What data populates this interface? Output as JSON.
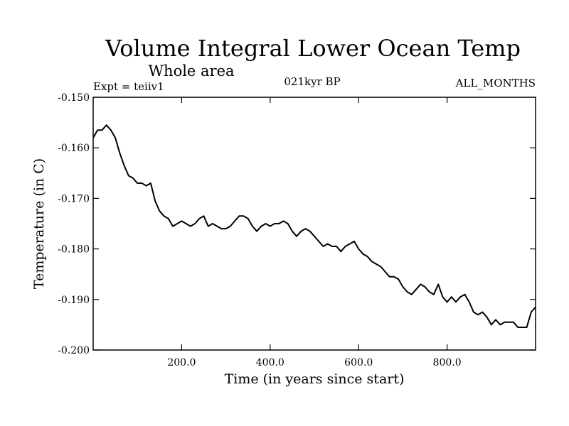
{
  "chart_data": {
    "type": "line",
    "title": "Volume Integral Lower Ocean Temp",
    "subtitle": "Whole area",
    "annotations": {
      "left": "Expt = teiiv1",
      "center": "021kyr BP",
      "right": "ALL_MONTHS"
    },
    "xlabel": "Time (in years since start)",
    "ylabel": "Temperature (in C)",
    "xlim": [
      0,
      1000
    ],
    "ylim": [
      -0.2,
      -0.15
    ],
    "x_ticks": [
      200,
      400,
      600,
      800
    ],
    "x_tick_labels": [
      "200.0",
      "400.0",
      "600.0",
      "800.0"
    ],
    "y_ticks": [
      -0.2,
      -0.19,
      -0.18,
      -0.17,
      -0.16,
      -0.15
    ],
    "y_tick_labels": [
      "-0.200",
      "-0.190",
      "-0.180",
      "-0.170",
      "-0.160",
      "-0.150"
    ],
    "grid": false,
    "legend": "none",
    "line_color": "#000000",
    "series": [
      {
        "x": [
          0,
          10,
          20,
          30,
          40,
          50,
          60,
          70,
          80,
          90,
          100,
          110,
          120,
          130,
          140,
          150,
          160,
          170,
          180,
          190,
          200,
          210,
          220,
          230,
          240,
          250,
          260,
          270,
          280,
          290,
          300,
          310,
          320,
          330,
          340,
          350,
          360,
          370,
          380,
          390,
          400,
          410,
          420,
          430,
          440,
          450,
          460,
          470,
          480,
          490,
          500,
          510,
          520,
          530,
          540,
          550,
          560,
          570,
          580,
          590,
          600,
          610,
          620,
          630,
          640,
          650,
          660,
          670,
          680,
          690,
          700,
          710,
          720,
          730,
          740,
          750,
          760,
          770,
          780,
          790,
          800,
          810,
          820,
          830,
          840,
          850,
          860,
          870,
          880,
          890,
          900,
          910,
          920,
          930,
          940,
          950,
          960,
          970,
          980,
          990,
          1000
        ],
        "values": [
          -0.158,
          -0.1565,
          -0.1565,
          -0.1555,
          -0.1565,
          -0.158,
          -0.161,
          -0.1635,
          -0.1655,
          -0.166,
          -0.167,
          -0.167,
          -0.1675,
          -0.167,
          -0.1705,
          -0.1725,
          -0.1735,
          -0.174,
          -0.1755,
          -0.175,
          -0.1745,
          -0.175,
          -0.1755,
          -0.175,
          -0.174,
          -0.1735,
          -0.1755,
          -0.175,
          -0.1755,
          -0.176,
          -0.176,
          -0.1755,
          -0.1745,
          -0.1735,
          -0.1735,
          -0.174,
          -0.1755,
          -0.1765,
          -0.1755,
          -0.175,
          -0.1755,
          -0.175,
          -0.175,
          -0.1745,
          -0.175,
          -0.1765,
          -0.1775,
          -0.1765,
          -0.176,
          -0.1765,
          -0.1775,
          -0.1785,
          -0.1795,
          -0.179,
          -0.1795,
          -0.1795,
          -0.1805,
          -0.1795,
          -0.179,
          -0.1785,
          -0.18,
          -0.181,
          -0.1815,
          -0.1825,
          -0.183,
          -0.1835,
          -0.1845,
          -0.1855,
          -0.1855,
          -0.186,
          -0.1875,
          -0.1885,
          -0.189,
          -0.188,
          -0.187,
          -0.1875,
          -0.1885,
          -0.189,
          -0.187,
          -0.1895,
          -0.1905,
          -0.1895,
          -0.1905,
          -0.1895,
          -0.189,
          -0.1905,
          -0.1925,
          -0.193,
          -0.1925,
          -0.1935,
          -0.195,
          -0.194,
          -0.195,
          -0.1945,
          -0.1945,
          -0.1945,
          -0.1955,
          -0.1955,
          -0.1955,
          -0.1925,
          -0.1915
        ]
      }
    ]
  }
}
